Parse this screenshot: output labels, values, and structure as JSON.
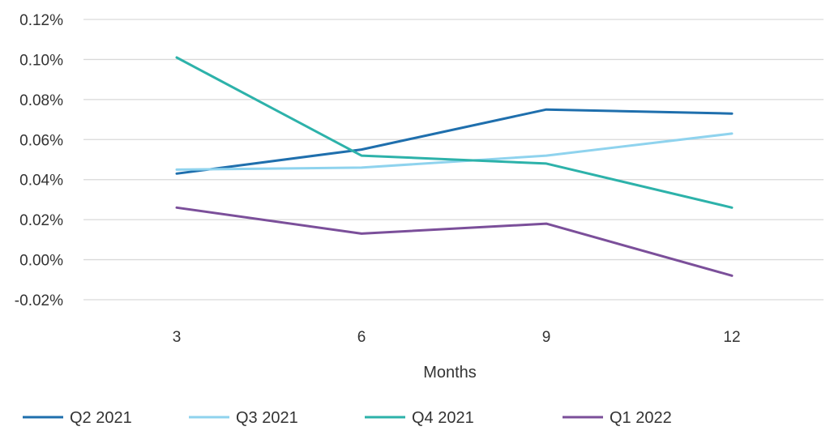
{
  "chart_data": {
    "type": "line",
    "title": "",
    "xlabel": "Months",
    "ylabel": "",
    "categories": [
      "3",
      "6",
      "9",
      "12"
    ],
    "y_ticks": [
      "0.12%",
      "0.10%",
      "0.08%",
      "0.06%",
      "0.04%",
      "0.02%",
      "0.00%",
      "-0.02%"
    ],
    "y_tick_values": [
      0.12,
      0.1,
      0.08,
      0.06,
      0.04,
      0.02,
      0.0,
      -0.02
    ],
    "ylim": [
      -0.02,
      0.12
    ],
    "grid": true,
    "legend_position": "bottom",
    "series": [
      {
        "name": "Q2 2021",
        "color": "#1f6fad",
        "values": [
          0.043,
          0.055,
          0.075,
          0.073
        ]
      },
      {
        "name": "Q3 2021",
        "color": "#8fd3ee",
        "values": [
          0.045,
          0.046,
          0.052,
          0.063
        ]
      },
      {
        "name": "Q4 2021",
        "color": "#2db2aa",
        "values": [
          0.101,
          0.052,
          0.048,
          0.026
        ]
      },
      {
        "name": "Q1 2022",
        "color": "#7b4f9a",
        "values": [
          0.026,
          0.013,
          0.018,
          -0.008
        ]
      }
    ]
  }
}
